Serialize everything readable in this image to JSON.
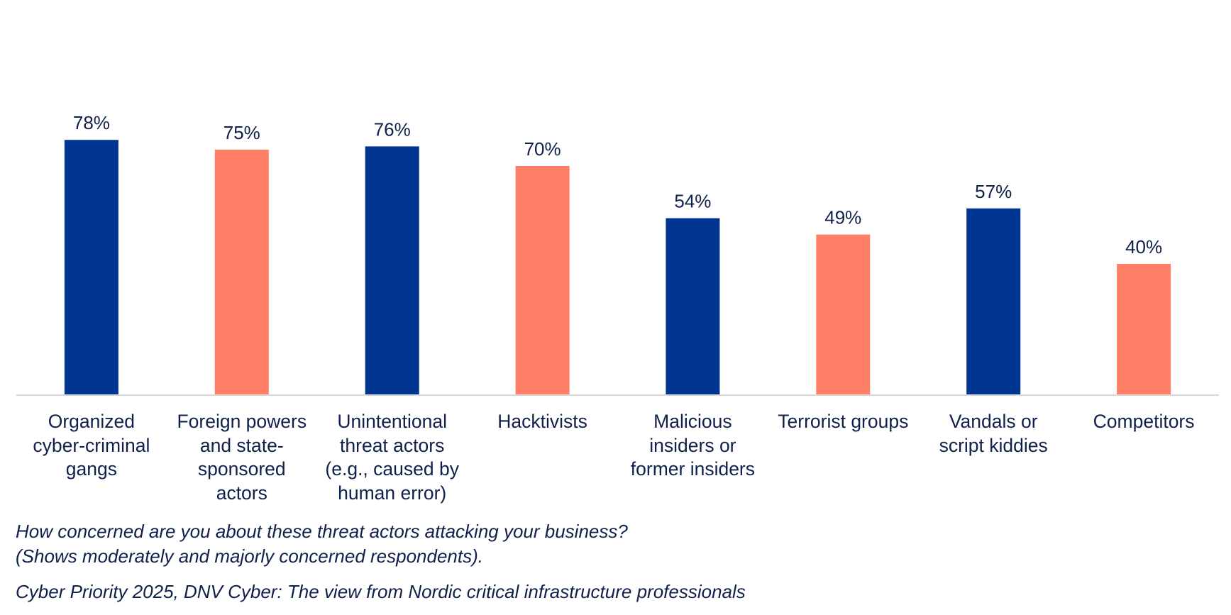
{
  "chart_data": {
    "type": "bar",
    "categories": [
      "Organized\ncyber-criminal\ngangs",
      "Foreign powers\nand state-\nsponsored\nactors",
      "Unintentional\nthreat actors\n(e.g., caused by\nhuman error)",
      "Hacktivists",
      "Malicious\ninsiders or\nformer insiders",
      "Terrorist groups",
      "Vandals or\nscript kiddies",
      "Competitors"
    ],
    "values": [
      78,
      75,
      76,
      70,
      54,
      49,
      57,
      40
    ],
    "value_labels": [
      "78%",
      "75%",
      "76%",
      "70%",
      "54%",
      "49%",
      "57%",
      "40%"
    ],
    "bar_colors": [
      "#003591",
      "#ff7f66",
      "#003591",
      "#ff7f66",
      "#003591",
      "#ff7f66",
      "#003591",
      "#ff7f66"
    ],
    "ylim": [
      0,
      100
    ],
    "grid": false,
    "legend": "none"
  },
  "notes": {
    "question": "How concerned are you about these threat actors attacking your business?",
    "qualifier": "(Shows moderately and majorly concerned respondents).",
    "source": "Cyber Priority 2025, DNV Cyber: The view from Nordic critical infrastructure professionals"
  },
  "colors": {
    "navy": "#003591",
    "coral": "#ff7f66",
    "text": "#0f204b",
    "axis": "#d9d9d9"
  }
}
